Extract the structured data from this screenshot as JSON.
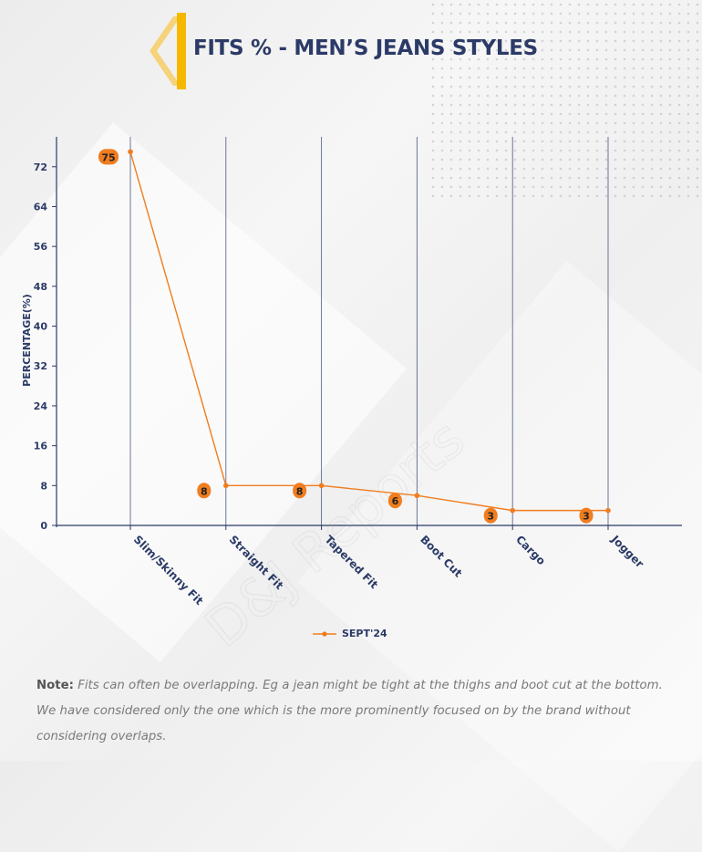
{
  "title": "FITS % - MEN’S JEANS STYLES",
  "colors": {
    "line": "#f07d1f",
    "axis": "#2b3a67",
    "accent": "#f5b800"
  },
  "chart_data": {
    "type": "line",
    "title": "FITS % - MEN’S JEANS STYLES",
    "xlabel": "",
    "ylabel": "PERCENTAGE(%)",
    "ylim": [
      0,
      78
    ],
    "yticks": [
      0,
      8,
      16,
      24,
      32,
      40,
      48,
      56,
      64,
      72
    ],
    "categories": [
      "Slim/Skinny Fit",
      "Straight Fit",
      "Tapered Fit",
      "Boot Cut",
      "Cargo",
      "Jogger"
    ],
    "series": [
      {
        "name": "SEPT'24",
        "values": [
          75,
          8,
          8,
          6,
          3,
          3
        ]
      }
    ],
    "legend_position": "bottom-center",
    "grid": "vertical"
  },
  "note": {
    "label": "Note:",
    "text": "Fits can often be overlapping. Eg a jean might be tight at the thighs and boot cut at the bottom. We have considered only the one which is the more prominently focused on by the brand without considering overlaps."
  },
  "watermark": "D&J Reports"
}
